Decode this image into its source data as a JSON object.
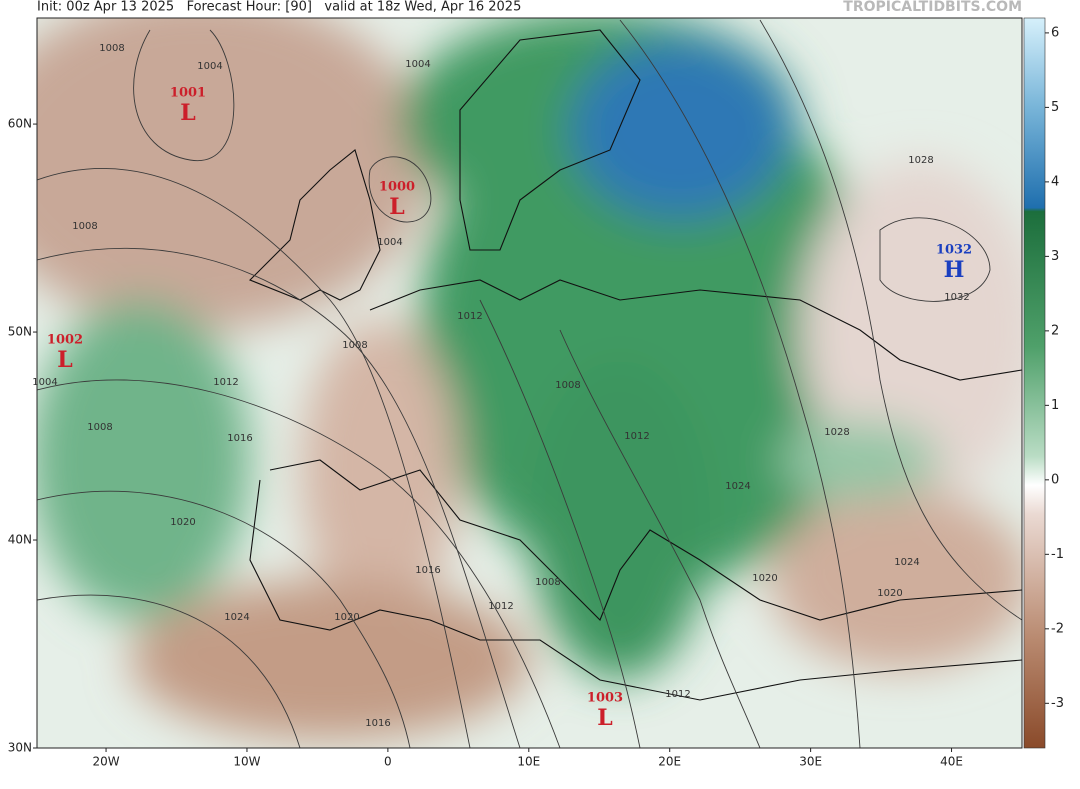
{
  "header": {
    "info": "Init: 00z Apr 13 2025   Forecast Hour: [90]   valid at 18z Wed, Apr 16 2025",
    "site": "TROPICALTIDBITS.COM"
  },
  "map": {
    "lon_lim": [
      -24.9,
      45
    ],
    "lat_lim": [
      30,
      65.1
    ],
    "lon_ticks": [
      {
        "value": -20,
        "label": "20W"
      },
      {
        "value": -10,
        "label": "10W"
      },
      0,
      {
        "value": 10,
        "label": "10E"
      },
      {
        "value": 20,
        "label": "20E"
      },
      {
        "value": 30,
        "label": "30E"
      },
      {
        "value": 40,
        "label": "40E"
      }
    ],
    "lat_ticks": [
      {
        "value": 30,
        "label": "30N"
      },
      {
        "value": 40,
        "label": "40N"
      },
      {
        "value": 50,
        "label": "50N"
      },
      {
        "value": 60,
        "label": "60N"
      }
    ]
  },
  "colorbar": {
    "lim": [
      -3.6,
      6.2
    ],
    "ticks": [
      -3,
      -2,
      -1,
      0,
      1,
      2,
      3,
      4,
      5,
      6
    ]
  },
  "centers": [
    {
      "letter": "L",
      "pressure": "1001"
    },
    {
      "letter": "L",
      "pressure": "1000"
    },
    {
      "letter": "L",
      "pressure": "1002"
    },
    {
      "letter": "H",
      "pressure": "1032"
    },
    {
      "letter": "L",
      "pressure": "1003"
    }
  ],
  "isobar_labels": [
    "1008",
    "1004",
    "1004",
    "1008",
    "1004",
    "1008",
    "1012",
    "1004",
    "1008",
    "1012",
    "1016",
    "1020",
    "1024",
    "1020",
    "1016",
    "1016",
    "1012",
    "1008",
    "1008",
    "1012",
    "1028",
    "1024",
    "1024",
    "1020",
    "1020",
    "1012",
    "1028",
    "1032"
  ]
}
